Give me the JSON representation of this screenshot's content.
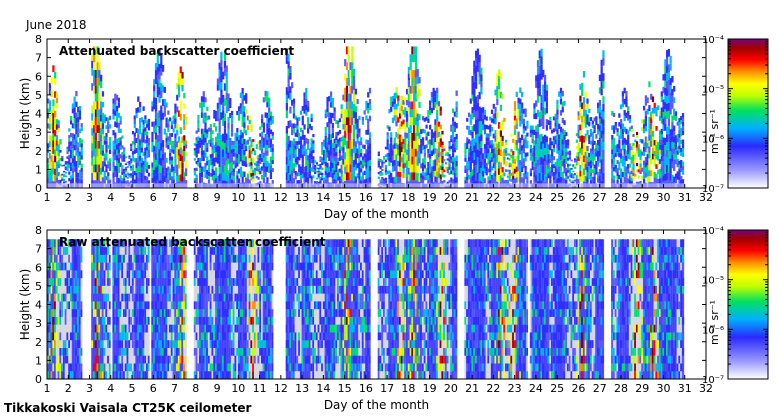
{
  "page": {
    "month_label": "June 2018",
    "footer": "Tikkakoski Vaisala CT25K ceilometer"
  },
  "chart_data": [
    {
      "type": "heatmap",
      "title": "Attenuated backscatter coefficient",
      "xlabel": "Day of the month",
      "ylabel": "Height (km)",
      "xlim": [
        1,
        32
      ],
      "ylim": [
        0,
        8
      ],
      "x_ticks": [
        1,
        2,
        3,
        4,
        5,
        6,
        7,
        8,
        9,
        10,
        11,
        12,
        13,
        14,
        15,
        16,
        17,
        18,
        19,
        20,
        21,
        22,
        23,
        24,
        25,
        26,
        27,
        28,
        29,
        30,
        31,
        32
      ],
      "y_ticks": [
        0,
        1,
        2,
        3,
        4,
        5,
        6,
        7,
        8
      ],
      "colorbar": {
        "label": "m⁻¹ sr⁻¹",
        "scale": "log",
        "range": [
          1e-07,
          0.0001
        ],
        "ticks": [
          "10⁻⁷",
          "10⁻⁶",
          "10⁻⁵",
          "10⁻⁴"
        ]
      },
      "background": "none",
      "high_signal_days": [
        1.3,
        3.3,
        7.3,
        10.6,
        15.1,
        17.6,
        18.2,
        19.5,
        22.3,
        22.9,
        26.1,
        28.7,
        29.5
      ],
      "colormap": [
        "#ffffff",
        "#3030ff",
        "#00c8ff",
        "#00e000",
        "#ffff00",
        "#ff8000",
        "#ff0000",
        "#800000",
        "#800080"
      ]
    },
    {
      "type": "heatmap",
      "title": "Raw attenuated backscatter coefficient",
      "xlabel": "Day of the month",
      "ylabel": "Height (km)",
      "xlim": [
        1,
        32
      ],
      "ylim": [
        0,
        8
      ],
      "x_ticks": [
        1,
        2,
        3,
        4,
        5,
        6,
        7,
        8,
        9,
        10,
        11,
        12,
        13,
        14,
        15,
        16,
        17,
        18,
        19,
        20,
        21,
        22,
        23,
        24,
        25,
        26,
        27,
        28,
        29,
        30,
        31,
        32
      ],
      "y_ticks": [
        0,
        1,
        2,
        3,
        4,
        5,
        6,
        7,
        8
      ],
      "colorbar": {
        "label": "m⁻¹ sr⁻¹",
        "scale": "log",
        "range": [
          1e-07,
          0.0001
        ],
        "ticks": [
          "10⁻⁷",
          "10⁻⁶",
          "10⁻⁵",
          "10⁻⁴"
        ]
      },
      "background": "#d8d8e0",
      "high_signal_days": [
        1.3,
        3.3,
        7.3,
        10.6,
        15.1,
        17.6,
        18.2,
        19.5,
        22.3,
        22.9,
        26.1,
        28.7,
        29.5
      ],
      "colormap": [
        "#ffffff",
        "#3030ff",
        "#00c8ff",
        "#00e000",
        "#ffff00",
        "#ff8000",
        "#ff0000",
        "#800000",
        "#800080"
      ]
    }
  ]
}
